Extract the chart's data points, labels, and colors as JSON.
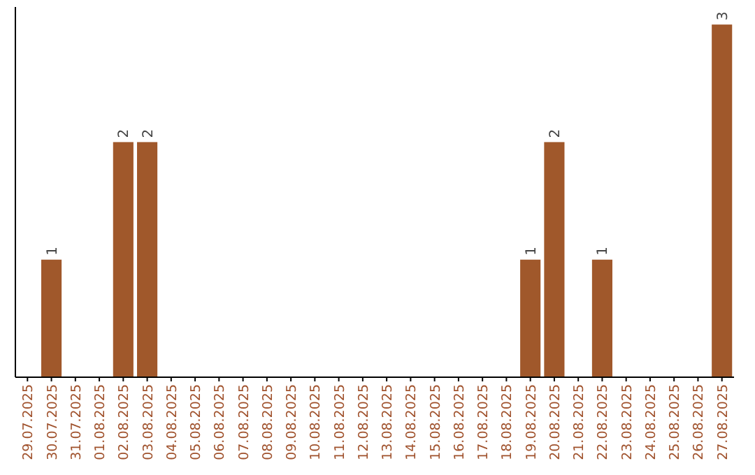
{
  "chart_data": {
    "type": "bar",
    "categories": [
      "29.07.2025",
      "30.07.2025",
      "31.07.2025",
      "01.08.2025",
      "02.08.2025",
      "03.08.2025",
      "04.08.2025",
      "05.08.2025",
      "06.08.2025",
      "07.08.2025",
      "08.08.2025",
      "09.08.2025",
      "10.08.2025",
      "11.08.2025",
      "12.08.2025",
      "13.08.2025",
      "14.08.2025",
      "15.08.2025",
      "16.08.2025",
      "17.08.2025",
      "18.08.2025",
      "19.08.2025",
      "20.08.2025",
      "21.08.2025",
      "22.08.2025",
      "23.08.2025",
      "24.08.2025",
      "25.08.2025",
      "26.08.2025",
      "27.08.2025"
    ],
    "values": [
      0,
      1,
      0,
      0,
      2,
      2,
      0,
      0,
      0,
      0,
      0,
      0,
      0,
      0,
      0,
      0,
      0,
      0,
      0,
      0,
      0,
      1,
      2,
      0,
      1,
      0,
      0,
      0,
      0,
      3
    ],
    "value_labels": [
      null,
      "1",
      null,
      null,
      "2",
      "2",
      null,
      null,
      null,
      null,
      null,
      null,
      null,
      null,
      null,
      null,
      null,
      null,
      null,
      null,
      null,
      "1",
      "2",
      null,
      "1",
      null,
      null,
      null,
      null,
      "3"
    ],
    "color": "#a0582b"
  }
}
